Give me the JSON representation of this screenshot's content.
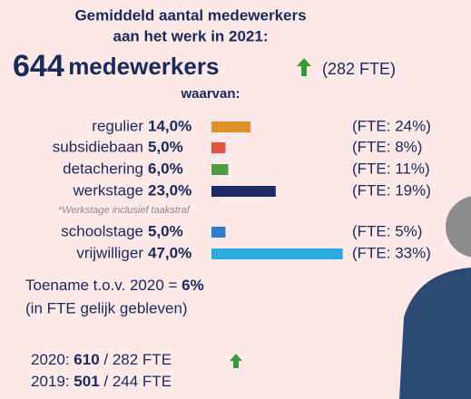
{
  "chart_data": {
    "type": "bar",
    "orientation": "horizontal",
    "title_lines": [
      "Gemiddeld aantal medewerkers",
      "aan het werk in 2021:"
    ],
    "headline": {
      "number": "644",
      "unit": "medewerkers",
      "fte": "(282 FTE)"
    },
    "subtitle": "waarvan:",
    "categories": [
      "regulier",
      "subsidiebaan",
      "detachering",
      "werkstage",
      "schoolstage",
      "vrijwilliger"
    ],
    "values": [
      14,
      5,
      6,
      23,
      5,
      47
    ],
    "value_labels": [
      "14,0%",
      "5,0%",
      "6,0%",
      "23,0%",
      "5,0%",
      "47,0%"
    ],
    "fte_labels": [
      "(FTE: 24%)",
      "(FTE: 8%)",
      "(FTE: 11%)",
      "(FTE: 19%)",
      "(FTE: 5%)",
      "(FTE: 33%)"
    ],
    "colors": [
      "#e0922a",
      "#e8533f",
      "#4e9a3e",
      "#1a2e63",
      "#2f7fc8",
      "#29abe2"
    ],
    "xlim": [
      0,
      50
    ],
    "footnote": "*Werkstage inclusief taakstraf",
    "increase": {
      "text": "Toename t.o.v. 2020 =",
      "value": "6%",
      "note": "(in FTE gelijk gebleven)"
    },
    "history": [
      {
        "year": "2020:",
        "count": "610",
        "fte": "/ 282 FTE"
      },
      {
        "year": "2019:",
        "count": "501",
        "fte": "/ 244 FTE"
      }
    ]
  }
}
